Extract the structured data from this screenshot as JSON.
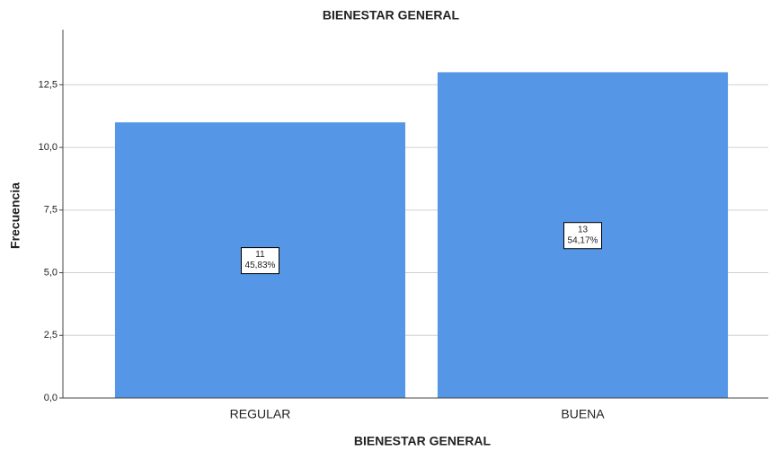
{
  "chart_data": {
    "type": "bar",
    "title": "BIENESTAR GENERAL",
    "x_label": "BIENESTAR GENERAL",
    "y_label": "Frecuencia",
    "categories": [
      "REGULAR",
      "BUENA"
    ],
    "values": [
      11,
      13
    ],
    "percentages": [
      45.83,
      54.17
    ],
    "percentage_labels": [
      "45,83%",
      "54,17%"
    ],
    "color": "#5596e6",
    "ylim": [
      0,
      14.7
    ],
    "yticks": [
      {
        "value": 0,
        "label": "0,0"
      },
      {
        "value": 2.5,
        "label": "2,5"
      },
      {
        "value": 5,
        "label": "5,0"
      },
      {
        "value": 7.5,
        "label": "7,5"
      },
      {
        "value": 10,
        "label": "10,0"
      },
      {
        "value": 12.5,
        "label": "12,5"
      }
    ],
    "grid": true
  }
}
